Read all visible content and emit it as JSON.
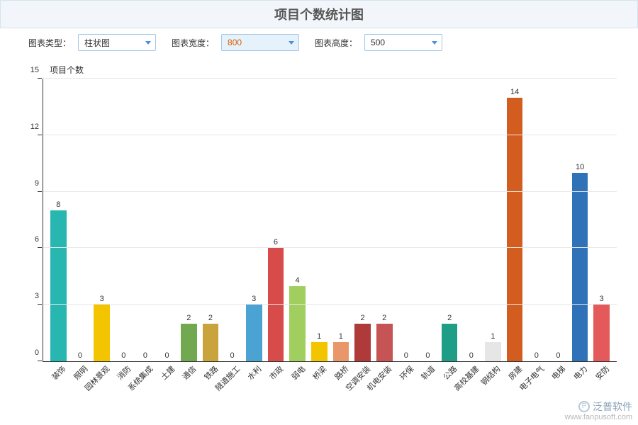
{
  "title": "项目个数统计图",
  "controls": {
    "chart_type": {
      "label": "图表类型：",
      "value": "柱状图"
    },
    "chart_width": {
      "label": "图表宽度：",
      "value": "800",
      "highlight": true
    },
    "chart_height": {
      "label": "图表高度：",
      "value": "500"
    }
  },
  "chart": {
    "type": "bar",
    "y_title": "项目个数",
    "ylim": [
      0,
      15
    ],
    "yticks": [
      0,
      3,
      6,
      9,
      12,
      15
    ],
    "grid_color": "#e8e8e8",
    "axis_color": "#333333",
    "background_color": "#ffffff",
    "label_fontsize": 11,
    "bar_width": 0.74,
    "categories": [
      "装饰",
      "照明",
      "园林景观",
      "消防",
      "系统集成",
      "土建",
      "通信",
      "铁路",
      "隧道施工",
      "水利",
      "市政",
      "弱电",
      "桥梁",
      "路桥",
      "空调安装",
      "机电安装",
      "环保",
      "轨道",
      "公路",
      "高校基建",
      "钢结构",
      "房建",
      "电子电气",
      "电梯",
      "电力",
      "安防"
    ],
    "values": [
      8,
      0,
      3,
      0,
      0,
      0,
      2,
      2,
      0,
      3,
      6,
      4,
      1,
      1,
      2,
      2,
      0,
      0,
      2,
      0,
      1,
      14,
      0,
      0,
      10,
      3
    ],
    "bar_colors": [
      "#27b6b0",
      "#cccccc",
      "#f2c500",
      "#cccccc",
      "#cccccc",
      "#cccccc",
      "#72a84f",
      "#c9a33b",
      "#cccccc",
      "#4aa3d2",
      "#d84b4b",
      "#a1cf5f",
      "#f2c500",
      "#e9976a",
      "#b03939",
      "#c75454",
      "#cccccc",
      "#cccccc",
      "#1f9e87",
      "#cccccc",
      "#e6e6e6",
      "#d35d1f",
      "#cccccc",
      "#cccccc",
      "#2f72b7",
      "#e45a5a"
    ]
  },
  "watermark": {
    "brand": "泛普软件",
    "url": "www.fanpusoft.com"
  }
}
